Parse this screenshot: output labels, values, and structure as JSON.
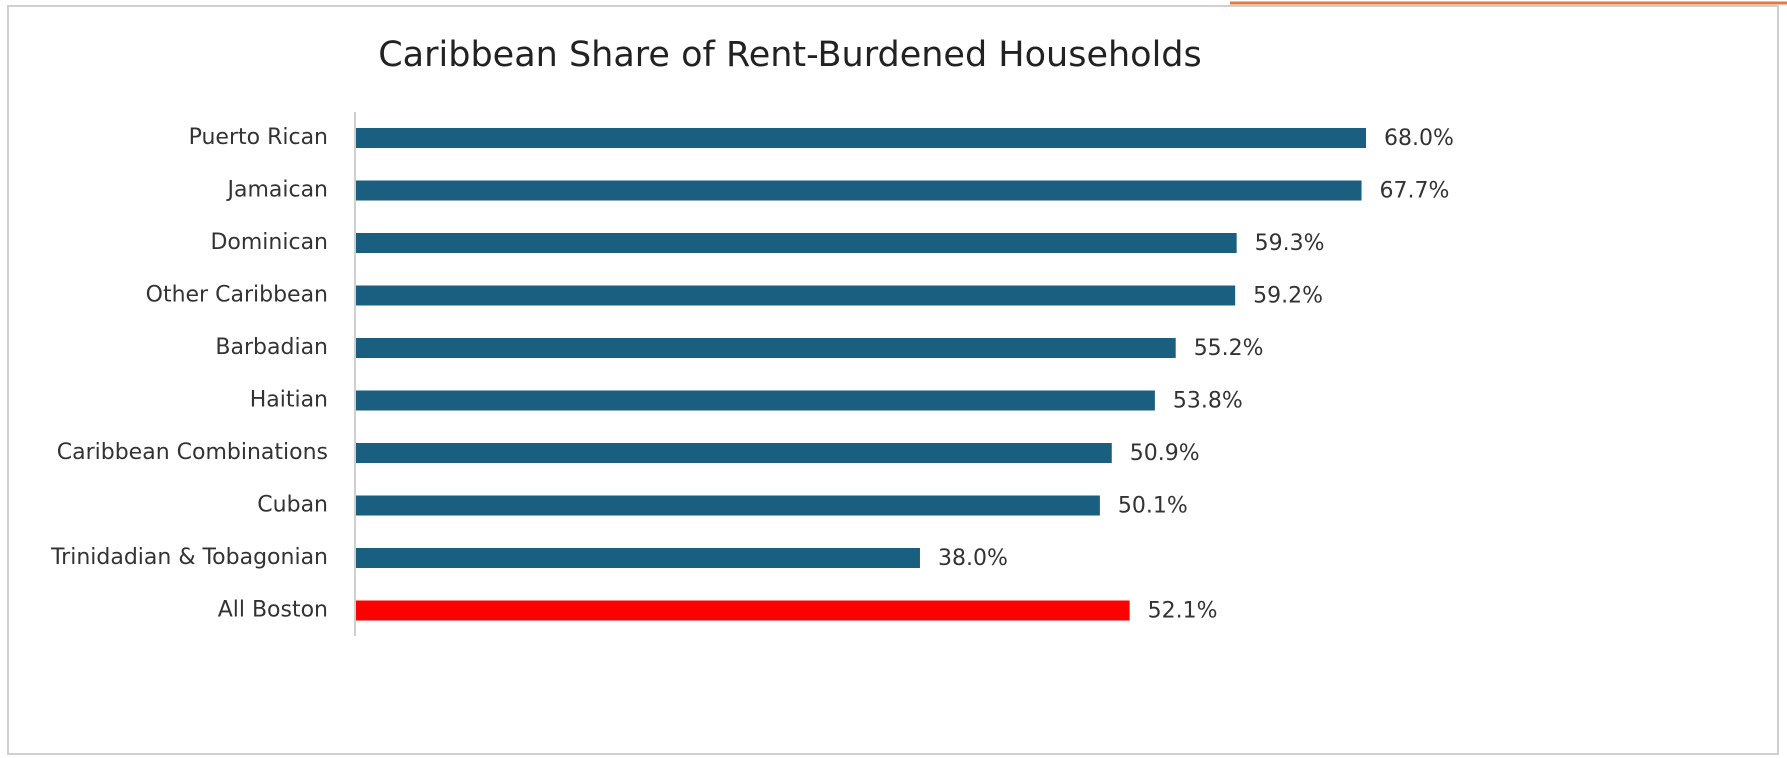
{
  "chart_data": {
    "type": "barh",
    "title": "Caribbean Share of Rent-Burdened Households",
    "categories": [
      "Puerto Rican",
      "Jamaican",
      "Dominican",
      "Other Caribbean",
      "Barbadian",
      "Haitian",
      "Caribbean Combinations",
      "Cuban",
      "Trinidadian & Tobagonian",
      "All Boston"
    ],
    "values": [
      68.0,
      67.7,
      59.3,
      59.2,
      55.2,
      53.8,
      50.9,
      50.1,
      38.0,
      52.1
    ],
    "value_labels": [
      "68.0%",
      "67.7%",
      "59.3%",
      "59.2%",
      "55.2%",
      "53.8%",
      "50.9%",
      "50.1%",
      "38.0%",
      "52.1%"
    ],
    "colors": [
      "#1a5e80",
      "#1a5e80",
      "#1a5e80",
      "#1a5e80",
      "#1a5e80",
      "#1a5e80",
      "#1a5e80",
      "#1a5e80",
      "#1a5e80",
      "#ff0000"
    ]
  }
}
